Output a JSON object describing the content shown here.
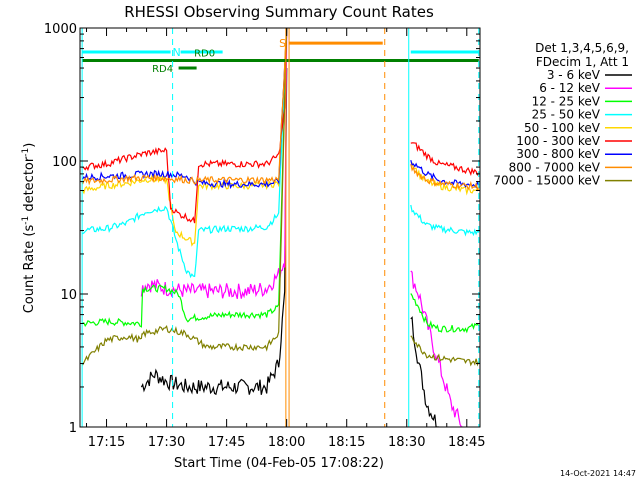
{
  "chart_data": {
    "type": "line",
    "title": "RHESSI Observing Summary Count Rates",
    "xlabel": "Start Time (04-Feb-05 17:08:22)",
    "ylabel_main": "Count Rate (s",
    "ylabel_sup1": "-1",
    "ylabel_mid": " detector",
    "ylabel_sup2": "-1",
    "ylabel_end": ")",
    "footer": "14-Oct-2021 14:47",
    "yscale": "log",
    "ylim": [
      1,
      1000
    ],
    "xlim_minutes": [
      17.37,
      47.3
    ],
    "x_ticks": [
      {
        "min": 15,
        "label": "17:15"
      },
      {
        "min": 30,
        "label": "17:30"
      },
      {
        "min": 45,
        "label": "17:45"
      },
      {
        "min": 60,
        "label": "18:00"
      },
      {
        "min": 75,
        "label": "18:15"
      },
      {
        "min": 90,
        "label": "18:30"
      },
      {
        "min": 105,
        "label": "18:45"
      }
    ],
    "y_ticks": [
      {
        "value": 1,
        "label": "1"
      },
      {
        "value": 10,
        "label": "10"
      },
      {
        "value": 100,
        "label": "100"
      },
      {
        "value": 1000,
        "label": "1000"
      }
    ],
    "legend_header": [
      "Det 1,3,4,5,6,9,",
      "FDecim 1, Att 1"
    ],
    "legend_position": "right",
    "series": [
      {
        "name": "3 - 6 keV",
        "color": "#000000",
        "points": [
          [
            23.7,
            2
          ],
          [
            27,
            2.5
          ],
          [
            30,
            2.2
          ],
          [
            35,
            2
          ],
          [
            40,
            2
          ],
          [
            45,
            2
          ],
          [
            50,
            2
          ],
          [
            55,
            2
          ],
          [
            58,
            3
          ],
          [
            59.5,
            10
          ],
          [
            60,
            500
          ]
        ],
        "after": [
          [
            91,
            7
          ],
          [
            93,
            3
          ],
          [
            95,
            1.5
          ],
          [
            98,
            1
          ]
        ]
      },
      {
        "name": "6 - 12 keV",
        "color": "#ff00ff",
        "points": [
          [
            23.7,
            11
          ],
          [
            25,
            12
          ],
          [
            30,
            11
          ],
          [
            35,
            10.5
          ],
          [
            40,
            10.5
          ],
          [
            45,
            10.5
          ],
          [
            50,
            10.5
          ],
          [
            55,
            11
          ],
          [
            58,
            14
          ],
          [
            59.5,
            18
          ],
          [
            60,
            1000
          ]
        ],
        "after": [
          [
            91,
            14
          ],
          [
            93,
            10
          ],
          [
            95,
            6
          ],
          [
            98,
            3
          ],
          [
            101,
            1.5
          ],
          [
            104,
            1
          ]
        ]
      },
      {
        "name": "12 - 25 keV",
        "color": "#00ff00",
        "points": [
          [
            9,
            6
          ],
          [
            15,
            6.2
          ],
          [
            20,
            6.1
          ],
          [
            23.7,
            6
          ],
          [
            24,
            11
          ],
          [
            30,
            11
          ],
          [
            33,
            10
          ],
          [
            35,
            6.5
          ],
          [
            40,
            6.8
          ],
          [
            45,
            7
          ],
          [
            50,
            7
          ],
          [
            55,
            7
          ],
          [
            58,
            8
          ],
          [
            60,
            1000
          ]
        ],
        "after": [
          [
            91,
            10
          ],
          [
            93,
            8
          ],
          [
            95,
            6
          ],
          [
            98,
            5.5
          ],
          [
            102,
            5.5
          ],
          [
            105,
            5.5
          ],
          [
            108,
            5.8
          ]
        ]
      },
      {
        "name": "25 - 50 keV",
        "color": "#00ffff",
        "points": [
          [
            9,
            30
          ],
          [
            15,
            31
          ],
          [
            20,
            34
          ],
          [
            25,
            42
          ],
          [
            30,
            45
          ],
          [
            33,
            22
          ],
          [
            35,
            15
          ],
          [
            37,
            13
          ],
          [
            38,
            30
          ],
          [
            45,
            31
          ],
          [
            50,
            31
          ],
          [
            55,
            32
          ],
          [
            58,
            40
          ],
          [
            60,
            1000
          ]
        ],
        "after": [
          [
            91,
            45
          ],
          [
            93,
            38
          ],
          [
            95,
            33
          ],
          [
            98,
            31
          ],
          [
            102,
            30
          ],
          [
            105,
            29
          ],
          [
            108,
            29
          ]
        ]
      },
      {
        "name": "50 - 100 keV",
        "color": "#ffd700",
        "points": [
          [
            9,
            60
          ],
          [
            15,
            65
          ],
          [
            20,
            68
          ],
          [
            25,
            73
          ],
          [
            30,
            72
          ],
          [
            32,
            30
          ],
          [
            35,
            26
          ],
          [
            37,
            24
          ],
          [
            38,
            65
          ],
          [
            45,
            65
          ],
          [
            50,
            65
          ],
          [
            55,
            66
          ],
          [
            58,
            68
          ],
          [
            60,
            1000
          ]
        ],
        "after": [
          [
            91,
            100
          ],
          [
            93,
            80
          ],
          [
            95,
            70
          ],
          [
            98,
            65
          ],
          [
            102,
            62
          ],
          [
            105,
            60
          ],
          [
            108,
            60
          ]
        ]
      },
      {
        "name": "100 - 300 keV",
        "color": "#ff0000",
        "points": [
          [
            9,
            90
          ],
          [
            15,
            95
          ],
          [
            20,
            105
          ],
          [
            25,
            115
          ],
          [
            30,
            120
          ],
          [
            31,
            45
          ],
          [
            33,
            40
          ],
          [
            35,
            38
          ],
          [
            37,
            35
          ],
          [
            38,
            95
          ],
          [
            45,
            95
          ],
          [
            50,
            95
          ],
          [
            55,
            95
          ],
          [
            58,
            110
          ],
          [
            59.5,
            250
          ],
          [
            60,
            1000
          ]
        ],
        "after": [
          [
            91,
            140
          ],
          [
            93,
            125
          ],
          [
            95,
            110
          ],
          [
            98,
            95
          ],
          [
            102,
            90
          ],
          [
            105,
            85
          ],
          [
            108,
            82
          ]
        ]
      },
      {
        "name": "300 - 800 keV",
        "color": "#0000ff",
        "points": [
          [
            9,
            75
          ],
          [
            15,
            77
          ],
          [
            20,
            78
          ],
          [
            25,
            80
          ],
          [
            30,
            80
          ],
          [
            33,
            78
          ],
          [
            35,
            77
          ],
          [
            37,
            70
          ],
          [
            40,
            68
          ],
          [
            45,
            67
          ],
          [
            50,
            67
          ],
          [
            55,
            67
          ],
          [
            58,
            70
          ],
          [
            60,
            1000
          ]
        ],
        "after": [
          [
            91,
            100
          ],
          [
            93,
            90
          ],
          [
            95,
            80
          ],
          [
            98,
            72
          ],
          [
            102,
            68
          ],
          [
            105,
            67
          ],
          [
            108,
            66
          ]
        ]
      },
      {
        "name": "800 - 7000 keV",
        "color": "#ff8c00",
        "points": [
          [
            9,
            70
          ],
          [
            15,
            72
          ],
          [
            20,
            74
          ],
          [
            25,
            75
          ],
          [
            30,
            74
          ],
          [
            33,
            73
          ],
          [
            35,
            72
          ],
          [
            37,
            71
          ],
          [
            40,
            72
          ],
          [
            45,
            72
          ],
          [
            50,
            72
          ],
          [
            55,
            72
          ],
          [
            58,
            73
          ],
          [
            60,
            1000
          ]
        ],
        "after": [
          [
            91,
            90
          ],
          [
            93,
            80
          ],
          [
            95,
            72
          ],
          [
            98,
            68
          ],
          [
            102,
            66
          ],
          [
            105,
            65
          ],
          [
            108,
            64
          ]
        ]
      },
      {
        "name": "7000 - 15000 keV",
        "color": "#808000",
        "points": [
          [
            9,
            3
          ],
          [
            15,
            4.5
          ],
          [
            20,
            4.8
          ],
          [
            23.7,
            4.5
          ],
          [
            24,
            5
          ],
          [
            30,
            5.5
          ],
          [
            35,
            5
          ],
          [
            40,
            4
          ],
          [
            45,
            4
          ],
          [
            50,
            4
          ],
          [
            55,
            4
          ],
          [
            58,
            5
          ],
          [
            60,
            1000
          ]
        ],
        "after": [
          [
            91,
            5
          ],
          [
            93,
            4
          ],
          [
            95,
            3.5
          ],
          [
            98,
            3.3
          ],
          [
            102,
            3.2
          ],
          [
            105,
            3.1
          ],
          [
            108,
            3.1
          ]
        ]
      }
    ],
    "attenuator_bars": [
      {
        "label": "N",
        "color": "#00ffff",
        "value": 660
      },
      {
        "label": "S",
        "color": "#ff8c00",
        "value": 770
      },
      {
        "label": "RD0",
        "color": "#008000",
        "value": 570
      },
      {
        "label": "RD4",
        "color": "#008000",
        "value": 500
      }
    ],
    "vertical_markers": [
      {
        "color": "#00ffff",
        "style": "solid"
      },
      {
        "color": "#00ffff",
        "style": "dashed"
      },
      {
        "color": "#ff8c00",
        "style": "solid"
      },
      {
        "color": "#ff8c00",
        "style": "dashed"
      }
    ]
  }
}
